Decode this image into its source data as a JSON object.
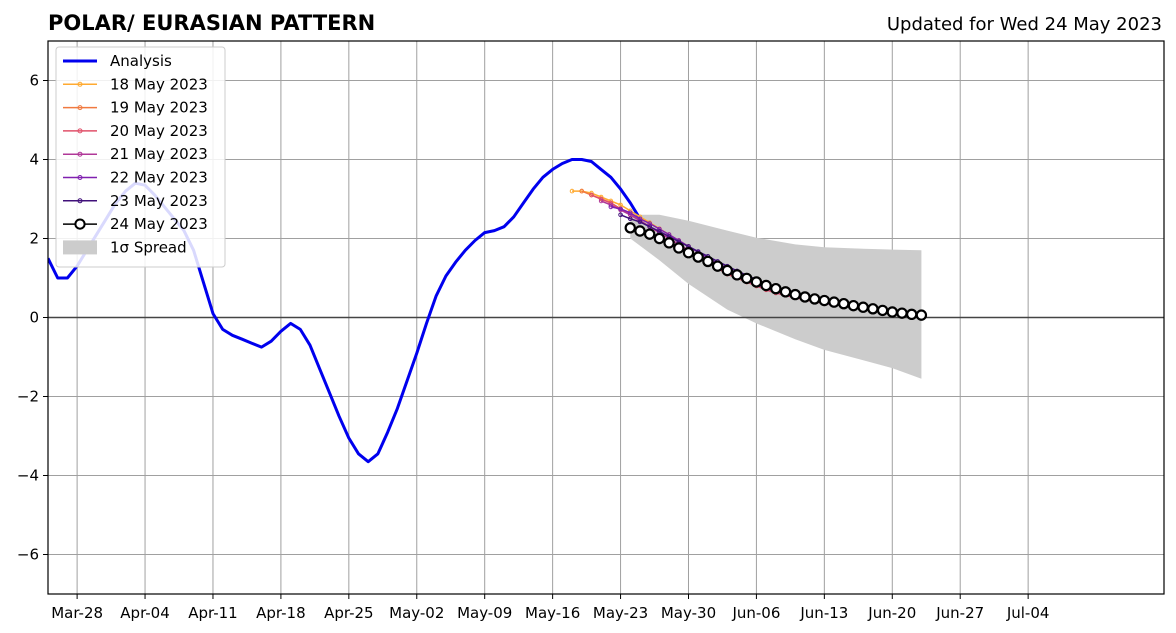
{
  "chart_data": {
    "type": "line",
    "title": "POLAR/ EURASIAN  PATTERN",
    "subtitle": "Updated for Wed 24 May 2023",
    "xlabel": "",
    "ylabel": "",
    "x_start_date": "2023-03-25",
    "xlim_days": [
      0,
      115
    ],
    "ylim": [
      -7,
      7
    ],
    "grid": true,
    "legend_position": "top-left",
    "x_ticks": [
      {
        "day": 3,
        "label": "Mar-28"
      },
      {
        "day": 10,
        "label": "Apr-04"
      },
      {
        "day": 17,
        "label": "Apr-11"
      },
      {
        "day": 24,
        "label": "Apr-18"
      },
      {
        "day": 31,
        "label": "Apr-25"
      },
      {
        "day": 38,
        "label": "May-02"
      },
      {
        "day": 45,
        "label": "May-09"
      },
      {
        "day": 52,
        "label": "May-16"
      },
      {
        "day": 59,
        "label": "May-23"
      },
      {
        "day": 66,
        "label": "May-30"
      },
      {
        "day": 73,
        "label": "Jun-06"
      },
      {
        "day": 80,
        "label": "Jun-13"
      },
      {
        "day": 87,
        "label": "Jun-20"
      },
      {
        "day": 94,
        "label": "Jun-27"
      },
      {
        "day": 101,
        "label": "Jul-04"
      }
    ],
    "y_ticks": [
      {
        "value": 6,
        "label": "6"
      },
      {
        "value": 4,
        "label": "4"
      },
      {
        "value": 2,
        "label": "2"
      },
      {
        "value": 0,
        "label": "0"
      },
      {
        "value": -2,
        "label": "−2"
      },
      {
        "value": -4,
        "label": "−4"
      },
      {
        "value": -6,
        "label": "−6"
      }
    ],
    "analysis": {
      "name": "Analysis",
      "color": "#0000ee",
      "start_day": 0,
      "values": [
        1.5,
        1.0,
        1.0,
        1.3,
        1.7,
        2.1,
        2.5,
        2.9,
        3.2,
        3.4,
        3.35,
        3.1,
        2.8,
        2.5,
        2.2,
        1.7,
        0.9,
        0.1,
        -0.3,
        -0.45,
        -0.55,
        -0.65,
        -0.75,
        -0.6,
        -0.35,
        -0.15,
        -0.3,
        -0.7,
        -1.3,
        -1.9,
        -2.5,
        -3.05,
        -3.45,
        -3.65,
        -3.45,
        -2.9,
        -2.3,
        -1.6,
        -0.9,
        -0.15,
        0.55,
        1.05,
        1.4,
        1.7,
        1.95,
        2.15,
        2.2,
        2.3,
        2.55,
        2.9,
        3.25,
        3.55,
        3.75,
        3.9,
        4.0,
        4.0,
        3.95,
        3.75,
        3.55,
        3.25,
        2.9,
        2.5
      ]
    },
    "forecasts": [
      {
        "name": "18 May 2023",
        "color": "#ffaa30",
        "start_day": 54,
        "values": [
          3.2,
          3.2,
          3.15,
          3.05,
          2.95,
          2.85,
          2.7,
          2.55,
          2.4,
          2.25,
          2.1,
          1.95,
          1.8,
          1.65,
          1.5,
          1.35,
          1.2,
          1.05,
          0.95,
          0.85,
          0.78,
          0.72,
          0.66,
          0.6,
          0.55
        ]
      },
      {
        "name": "19 May 2023",
        "color": "#f07a40",
        "start_day": 55,
        "values": [
          3.2,
          3.1,
          3.0,
          2.9,
          2.75,
          2.6,
          2.45,
          2.3,
          2.15,
          2.0,
          1.85,
          1.7,
          1.55,
          1.4,
          1.25,
          1.1,
          1.0,
          0.9,
          0.8,
          0.72,
          0.65,
          0.58,
          0.52,
          0.47,
          0.42
        ]
      },
      {
        "name": "20 May 2023",
        "color": "#e0506a",
        "start_day": 56,
        "values": [
          3.1,
          3.0,
          2.9,
          2.75,
          2.6,
          2.45,
          2.3,
          2.15,
          2.0,
          1.85,
          1.7,
          1.55,
          1.4,
          1.25,
          1.1,
          1.0,
          0.9,
          0.8,
          0.7,
          0.62,
          0.56,
          0.5,
          0.45,
          0.4,
          0.36
        ]
      },
      {
        "name": "21 May 2023",
        "color": "#b03898",
        "start_day": 57,
        "values": [
          2.95,
          2.85,
          2.72,
          2.6,
          2.45,
          2.3,
          2.15,
          2.0,
          1.85,
          1.7,
          1.55,
          1.4,
          1.27,
          1.15,
          1.03,
          0.92,
          0.82,
          0.73,
          0.65,
          0.58,
          0.52,
          0.46,
          0.41,
          0.36,
          0.32
        ]
      },
      {
        "name": "22 May 2023",
        "color": "#8020b0",
        "start_day": 58,
        "values": [
          2.8,
          2.75,
          2.65,
          2.5,
          2.38,
          2.24,
          2.1,
          1.95,
          1.8,
          1.65,
          1.5,
          1.37,
          1.25,
          1.12,
          1.0,
          0.9,
          0.8,
          0.72,
          0.64,
          0.57,
          0.5,
          0.44,
          0.39,
          0.34,
          0.3
        ]
      },
      {
        "name": "23 May 2023",
        "color": "#40107a",
        "start_day": 59,
        "values": [
          2.6,
          2.5,
          2.42,
          2.3,
          2.18,
          2.05,
          1.92,
          1.8,
          1.67,
          1.55,
          1.42,
          1.3,
          1.18,
          1.07,
          0.96,
          0.86,
          0.77,
          0.68,
          0.6,
          0.53,
          0.46,
          0.4,
          0.35,
          0.3,
          0.26
        ]
      }
    ],
    "forecast_current": {
      "name": "24 May 2023",
      "color": "#000000",
      "start_day": 60,
      "values": [
        2.27,
        2.19,
        2.11,
        2.0,
        1.89,
        1.76,
        1.64,
        1.53,
        1.42,
        1.3,
        1.19,
        1.08,
        0.99,
        0.9,
        0.81,
        0.73,
        0.65,
        0.58,
        0.52,
        0.47,
        0.43,
        0.39,
        0.35,
        0.3,
        0.26,
        0.22,
        0.18,
        0.14,
        0.11,
        0.08,
        0.06
      ]
    },
    "spread": {
      "name": "1σ Spread",
      "color": "#cccccc",
      "start_day": 60,
      "end_day": 90,
      "upper_points": [
        [
          60,
          2.6
        ],
        [
          63,
          2.6
        ],
        [
          66,
          2.45
        ],
        [
          70,
          2.2
        ],
        [
          73,
          2.02
        ],
        [
          77,
          1.85
        ],
        [
          80,
          1.78
        ],
        [
          84,
          1.74
        ],
        [
          87,
          1.72
        ],
        [
          90,
          1.7
        ]
      ],
      "lower_points": [
        [
          60,
          2.0
        ],
        [
          63,
          1.45
        ],
        [
          66,
          0.85
        ],
        [
          70,
          0.2
        ],
        [
          73,
          -0.15
        ],
        [
          77,
          -0.55
        ],
        [
          80,
          -0.82
        ],
        [
          84,
          -1.08
        ],
        [
          87,
          -1.28
        ],
        [
          90,
          -1.55
        ]
      ]
    }
  }
}
